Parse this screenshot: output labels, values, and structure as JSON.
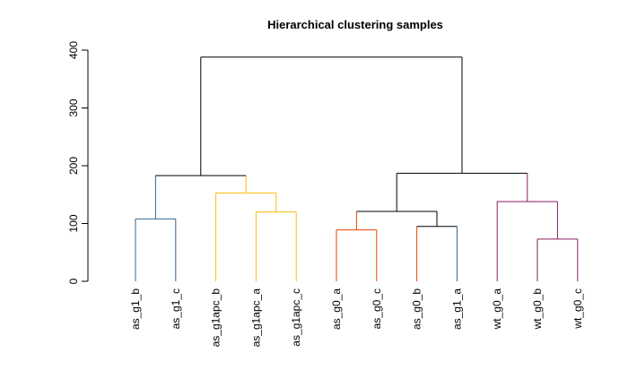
{
  "chart_data": {
    "type": "dendrogram",
    "title": "Hierarchical clustering samples",
    "xlabel": "",
    "ylabel": "",
    "ylim": [
      0,
      400
    ],
    "yticks": [
      0,
      100,
      200,
      300,
      400
    ],
    "leaves": [
      {
        "label": "as_g1_b",
        "color": "#36648b"
      },
      {
        "label": "as_g1_c",
        "color": "#36648b"
      },
      {
        "label": "as_g1apc_b",
        "color": "#ffb90f"
      },
      {
        "label": "as_g1apc_a",
        "color": "#ffb90f"
      },
      {
        "label": "as_g1apc_c",
        "color": "#ffb90f"
      },
      {
        "label": "as_g0_a",
        "color": "#ee4000"
      },
      {
        "label": "as_g0_c",
        "color": "#ee4000"
      },
      {
        "label": "as_g0_b",
        "color": "#ee4000"
      },
      {
        "label": "as_g1_a",
        "color": "#36648b"
      },
      {
        "label": "wt_g0_a",
        "color": "#8b1c62"
      },
      {
        "label": "wt_g0_b",
        "color": "#8b1c62"
      },
      {
        "label": "wt_g0_c",
        "color": "#8b1c62"
      }
    ],
    "merges": [
      {
        "id": "n1",
        "height": 108,
        "children": [
          "as_g1_b",
          "as_g1_c"
        ],
        "color": "#36648b"
      },
      {
        "id": "n2",
        "height": 120,
        "children": [
          "as_g1apc_a",
          "as_g1apc_c"
        ],
        "color": "#ffb90f"
      },
      {
        "id": "n3",
        "height": 153,
        "children": [
          "as_g1apc_b",
          "n2"
        ],
        "color": "#ffb90f"
      },
      {
        "id": "n4",
        "height": 183,
        "children": [
          "n1",
          "n3"
        ],
        "color": "#000000"
      },
      {
        "id": "n5",
        "height": 89,
        "children": [
          "as_g0_a",
          "as_g0_c"
        ],
        "color": "#ee4000"
      },
      {
        "id": "n6",
        "height": 95,
        "children": [
          "as_g0_b",
          "as_g1_a"
        ],
        "color": "#000000"
      },
      {
        "id": "n7",
        "height": 121,
        "children": [
          "n5",
          "n6"
        ],
        "color": "#000000"
      },
      {
        "id": "n8",
        "height": 73,
        "children": [
          "wt_g0_b",
          "wt_g0_c"
        ],
        "color": "#8b1c62"
      },
      {
        "id": "n9",
        "height": 138,
        "children": [
          "wt_g0_a",
          "n8"
        ],
        "color": "#8b1c62"
      },
      {
        "id": "n10",
        "height": 187,
        "children": [
          "n7",
          "n9"
        ],
        "color": "#000000"
      },
      {
        "id": "n11",
        "height": 388,
        "children": [
          "n4",
          "n10"
        ],
        "color": "#000000"
      }
    ]
  }
}
